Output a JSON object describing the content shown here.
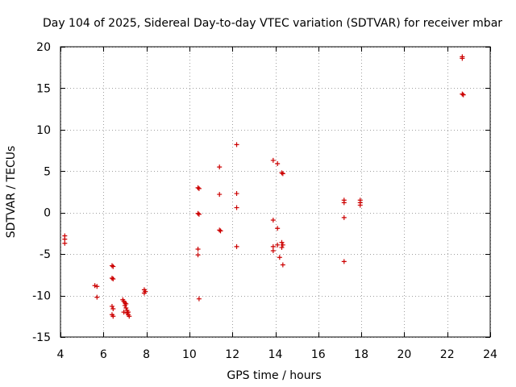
{
  "chart_data": {
    "type": "scatter",
    "title": "Day 104 of 2025, Sidereal Day-to-day VTEC variation (SDTVAR) for receiver mbar",
    "xlabel": "GPS time / hours",
    "ylabel": "SDTVAR / TECUs",
    "xlim": [
      4,
      24
    ],
    "ylim": [
      -15,
      20
    ],
    "xticks": [
      4,
      6,
      8,
      10,
      12,
      14,
      16,
      18,
      20,
      22,
      24
    ],
    "yticks": [
      -15,
      -10,
      -5,
      0,
      5,
      10,
      15,
      20
    ],
    "grid": true,
    "marker": "+",
    "color": "#cc0000",
    "series": [
      {
        "name": "SDTVAR",
        "points": [
          [
            4.2,
            -2.8
          ],
          [
            4.2,
            -3.2
          ],
          [
            4.2,
            -3.7
          ],
          [
            5.6,
            -8.8
          ],
          [
            5.7,
            -8.9
          ],
          [
            5.7,
            -10.2
          ],
          [
            6.4,
            -6.4
          ],
          [
            6.45,
            -6.5
          ],
          [
            6.4,
            -7.9
          ],
          [
            6.45,
            -8.0
          ],
          [
            6.4,
            -11.3
          ],
          [
            6.45,
            -11.6
          ],
          [
            6.4,
            -12.3
          ],
          [
            6.45,
            -12.5
          ],
          [
            6.9,
            -10.5
          ],
          [
            6.95,
            -10.7
          ],
          [
            7.0,
            -10.9
          ],
          [
            7.0,
            -11.2
          ],
          [
            7.05,
            -11.5
          ],
          [
            7.1,
            -11.8
          ],
          [
            6.95,
            -12.0
          ],
          [
            7.1,
            -12.1
          ],
          [
            7.15,
            -12.3
          ],
          [
            7.2,
            -12.5
          ],
          [
            7.05,
            -11.0
          ],
          [
            7.15,
            -12.0
          ],
          [
            7.9,
            -9.3
          ],
          [
            7.95,
            -9.5
          ],
          [
            7.9,
            -9.7
          ],
          [
            10.4,
            3.0
          ],
          [
            10.45,
            2.9
          ],
          [
            10.4,
            -0.1
          ],
          [
            10.45,
            -0.2
          ],
          [
            10.4,
            -4.4
          ],
          [
            10.4,
            -5.1
          ],
          [
            10.45,
            -10.4
          ],
          [
            11.4,
            5.5
          ],
          [
            11.4,
            2.2
          ],
          [
            11.4,
            -2.1
          ],
          [
            11.45,
            -2.2
          ],
          [
            12.2,
            8.2
          ],
          [
            12.2,
            2.3
          ],
          [
            12.2,
            0.6
          ],
          [
            12.2,
            -4.1
          ],
          [
            13.9,
            6.3
          ],
          [
            14.1,
            5.9
          ],
          [
            13.9,
            -0.9
          ],
          [
            14.1,
            -1.9
          ],
          [
            13.9,
            -4.1
          ],
          [
            14.1,
            -3.9
          ],
          [
            13.9,
            -4.6
          ],
          [
            14.2,
            -5.4
          ],
          [
            14.3,
            4.8
          ],
          [
            14.35,
            4.7
          ],
          [
            14.3,
            -3.6
          ],
          [
            14.35,
            -3.9
          ],
          [
            14.3,
            -4.2
          ],
          [
            14.35,
            -6.3
          ],
          [
            17.2,
            1.5
          ],
          [
            17.2,
            1.2
          ],
          [
            17.2,
            -0.6
          ],
          [
            17.2,
            -5.9
          ],
          [
            17.95,
            1.5
          ],
          [
            17.95,
            1.2
          ],
          [
            17.95,
            0.9
          ],
          [
            22.7,
            18.8
          ],
          [
            22.7,
            18.6
          ],
          [
            22.7,
            14.3
          ],
          [
            22.75,
            14.2
          ]
        ]
      }
    ]
  }
}
